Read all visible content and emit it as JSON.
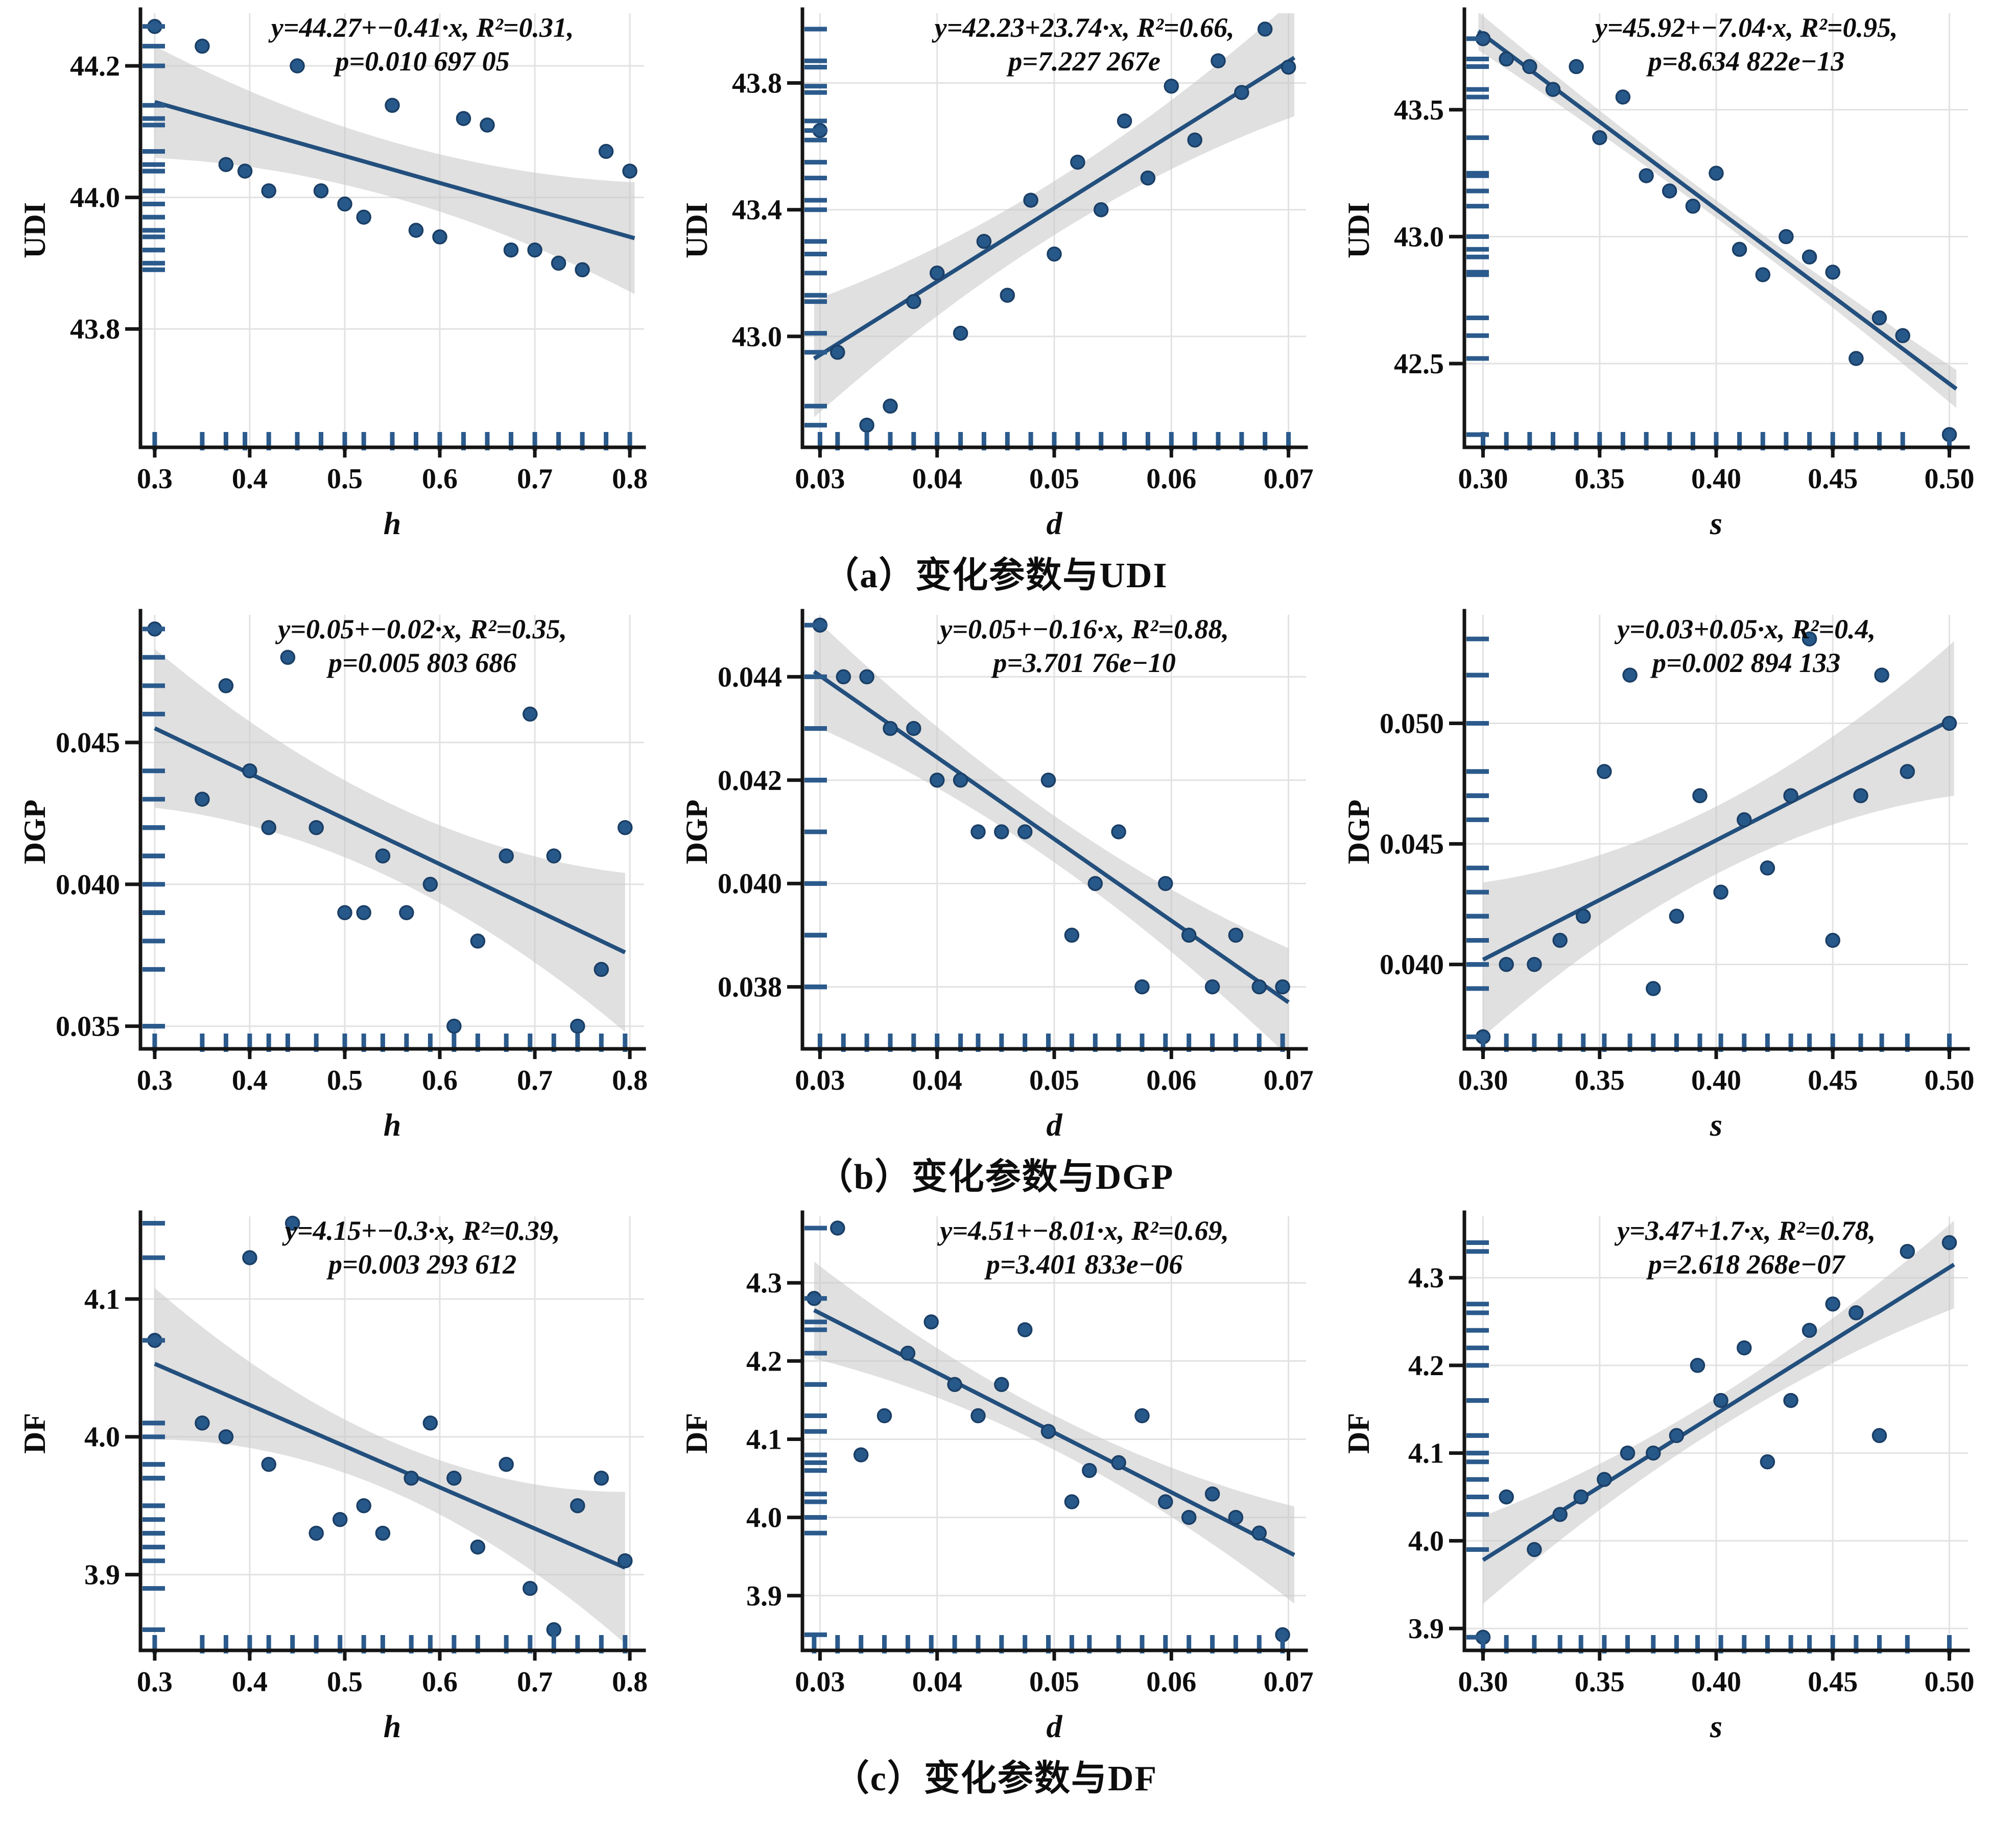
{
  "colors": {
    "point_fill": "#27588a",
    "point_stroke": "#1b3f66",
    "line": "#234f7d",
    "band": "#e0e0e0",
    "grid": "#c7c7c7",
    "axis": "#151515",
    "rug": "#2b5a8c",
    "text": "#0d0d0d"
  },
  "captions": [
    {
      "label": "（a）变化参数与UDI"
    },
    {
      "label": "（b）变化参数与DGP"
    },
    {
      "label": "（c）变化参数与DF"
    }
  ],
  "chart_data": [
    {
      "type": "scatter",
      "title": "UDI vs h regression",
      "annotation_line1": "y=44.27+−0.41·x, R²=0.31,",
      "annotation_line2": "p=0.010 697 05",
      "xlabel": "h",
      "ylabel": "UDI",
      "xlim": [
        0.285,
        0.815
      ],
      "ylim": [
        43.62,
        44.28
      ],
      "xtick_values": [
        0.3,
        0.4,
        0.5,
        0.6,
        0.7,
        0.8
      ],
      "xtick_labels": [
        "0.3",
        "0.4",
        "0.5",
        "0.6",
        "0.7",
        "0.8"
      ],
      "ytick_values": [
        44.2,
        44.0,
        43.8
      ],
      "ytick_labels": [
        "44.2",
        "44.0",
        "43.8"
      ],
      "regression": {
        "x1": 0.3,
        "y1": 44.145,
        "x2": 0.805,
        "y2": 43.938
      },
      "band": {
        "mid_halfwidth": 0.042,
        "end_halfwidth": 0.085
      },
      "points": [
        [
          0.3,
          44.26
        ],
        [
          0.35,
          44.23
        ],
        [
          0.375,
          44.05
        ],
        [
          0.395,
          44.04
        ],
        [
          0.42,
          44.01
        ],
        [
          0.45,
          44.2
        ],
        [
          0.475,
          44.01
        ],
        [
          0.5,
          43.99
        ],
        [
          0.52,
          43.97
        ],
        [
          0.55,
          44.14
        ],
        [
          0.575,
          43.95
        ],
        [
          0.6,
          43.94
        ],
        [
          0.625,
          44.12
        ],
        [
          0.65,
          44.11
        ],
        [
          0.675,
          43.92
        ],
        [
          0.7,
          43.92
        ],
        [
          0.725,
          43.9
        ],
        [
          0.75,
          43.89
        ],
        [
          0.775,
          44.07
        ],
        [
          0.8,
          44.04
        ]
      ]
    },
    {
      "type": "scatter",
      "title": "UDI vs d regression",
      "annotation_line1": "y=42.23+23.74·x, R²=0.66,",
      "annotation_line2": "p=7.227 267e",
      "xlabel": "d",
      "ylabel": "UDI",
      "xlim": [
        0.0285,
        0.0715
      ],
      "ylim": [
        42.65,
        44.02
      ],
      "xtick_values": [
        0.03,
        0.04,
        0.05,
        0.06,
        0.07
      ],
      "xtick_labels": [
        "0.03",
        "0.04",
        "0.05",
        "0.06",
        "0.07"
      ],
      "ytick_values": [
        43.8,
        43.4,
        43.0
      ],
      "ytick_labels": [
        "43.8",
        "43.4",
        "43.0"
      ],
      "regression": {
        "x1": 0.0295,
        "y1": 42.93,
        "x2": 0.0705,
        "y2": 43.88
      },
      "band": {
        "mid_halfwidth": 0.085,
        "end_halfwidth": 0.185
      },
      "points": [
        [
          0.03,
          43.65
        ],
        [
          0.0315,
          42.95
        ],
        [
          0.034,
          42.72
        ],
        [
          0.036,
          42.78
        ],
        [
          0.038,
          43.11
        ],
        [
          0.04,
          43.2
        ],
        [
          0.042,
          43.01
        ],
        [
          0.044,
          43.3
        ],
        [
          0.046,
          43.13
        ],
        [
          0.048,
          43.43
        ],
        [
          0.05,
          43.26
        ],
        [
          0.052,
          43.55
        ],
        [
          0.054,
          43.4
        ],
        [
          0.056,
          43.68
        ],
        [
          0.058,
          43.5
        ],
        [
          0.06,
          43.79
        ],
        [
          0.062,
          43.62
        ],
        [
          0.064,
          43.87
        ],
        [
          0.066,
          43.77
        ],
        [
          0.068,
          43.97
        ],
        [
          0.07,
          43.85
        ]
      ]
    },
    {
      "type": "scatter",
      "title": "UDI vs s regression",
      "annotation_line1": "y=45.92+−7.04·x, R²=0.95,",
      "annotation_line2": "p=8.634 822e−13",
      "xlabel": "s",
      "ylabel": "UDI",
      "xlim": [
        0.292,
        0.508
      ],
      "ylim": [
        42.17,
        43.88
      ],
      "xtick_values": [
        0.3,
        0.35,
        0.4,
        0.45,
        0.5
      ],
      "xtick_labels": [
        "0.30",
        "0.35",
        "0.40",
        "0.45",
        "0.50"
      ],
      "ytick_values": [
        43.5,
        43.0,
        42.5
      ],
      "ytick_labels": [
        "43.5",
        "43.0",
        "42.5"
      ],
      "regression": {
        "x1": 0.298,
        "y1": 43.81,
        "x2": 0.503,
        "y2": 42.4
      },
      "band": {
        "mid_halfwidth": 0.035,
        "end_halfwidth": 0.075
      },
      "points": [
        [
          0.3,
          43.78
        ],
        [
          0.31,
          43.7
        ],
        [
          0.32,
          43.67
        ],
        [
          0.33,
          43.58
        ],
        [
          0.34,
          43.67
        ],
        [
          0.35,
          43.39
        ],
        [
          0.36,
          43.55
        ],
        [
          0.37,
          43.24
        ],
        [
          0.38,
          43.18
        ],
        [
          0.39,
          43.12
        ],
        [
          0.4,
          43.25
        ],
        [
          0.41,
          42.95
        ],
        [
          0.42,
          42.85
        ],
        [
          0.43,
          43.0
        ],
        [
          0.44,
          42.92
        ],
        [
          0.45,
          42.86
        ],
        [
          0.46,
          42.52
        ],
        [
          0.47,
          42.68
        ],
        [
          0.48,
          42.61
        ],
        [
          0.5,
          42.22
        ]
      ]
    },
    {
      "type": "scatter",
      "title": "DGP vs h regression",
      "annotation_line1": "y=0.05+−0.02·x, R²=0.35,",
      "annotation_line2": "p=0.005 803 686",
      "xlabel": "h",
      "ylabel": "DGP",
      "xlim": [
        0.285,
        0.815
      ],
      "ylim": [
        0.0342,
        0.0495
      ],
      "xtick_values": [
        0.3,
        0.4,
        0.5,
        0.6,
        0.7,
        0.8
      ],
      "xtick_labels": [
        "0.3",
        "0.4",
        "0.5",
        "0.6",
        "0.7",
        "0.8"
      ],
      "ytick_values": [
        0.045,
        0.04,
        0.035
      ],
      "ytick_labels": [
        "0.045",
        "0.040",
        "0.035"
      ],
      "regression": {
        "x1": 0.3,
        "y1": 0.0455,
        "x2": 0.795,
        "y2": 0.0376
      },
      "band": {
        "mid_halfwidth": 0.0013,
        "end_halfwidth": 0.0028
      },
      "points": [
        [
          0.3,
          0.049
        ],
        [
          0.35,
          0.043
        ],
        [
          0.375,
          0.047
        ],
        [
          0.4,
          0.044
        ],
        [
          0.42,
          0.042
        ],
        [
          0.44,
          0.048
        ],
        [
          0.47,
          0.042
        ],
        [
          0.5,
          0.039
        ],
        [
          0.52,
          0.039
        ],
        [
          0.54,
          0.041
        ],
        [
          0.565,
          0.039
        ],
        [
          0.59,
          0.04
        ],
        [
          0.615,
          0.035
        ],
        [
          0.64,
          0.038
        ],
        [
          0.67,
          0.041
        ],
        [
          0.695,
          0.046
        ],
        [
          0.72,
          0.041
        ],
        [
          0.745,
          0.035
        ],
        [
          0.77,
          0.037
        ],
        [
          0.795,
          0.042
        ]
      ]
    },
    {
      "type": "scatter",
      "title": "DGP vs d regression",
      "annotation_line1": "y=0.05+−0.16·x, R²=0.88,",
      "annotation_line2": "p=3.701 76e−10",
      "xlabel": "d",
      "ylabel": "DGP",
      "xlim": [
        0.0285,
        0.0715
      ],
      "ylim": [
        0.0368,
        0.0452
      ],
      "xtick_values": [
        0.03,
        0.04,
        0.05,
        0.06,
        0.07
      ],
      "xtick_labels": [
        "0.03",
        "0.04",
        "0.05",
        "0.06",
        "0.07"
      ],
      "ytick_values": [
        0.044,
        0.042,
        0.04,
        0.038
      ],
      "ytick_labels": [
        "0.044",
        "0.042",
        "0.040",
        "0.038"
      ],
      "regression": {
        "x1": 0.0295,
        "y1": 0.0441,
        "x2": 0.07,
        "y2": 0.0377
      },
      "band": {
        "mid_halfwidth": 0.00045,
        "end_halfwidth": 0.00105
      },
      "points": [
        [
          0.03,
          0.045
        ],
        [
          0.032,
          0.044
        ],
        [
          0.034,
          0.044
        ],
        [
          0.036,
          0.043
        ],
        [
          0.038,
          0.043
        ],
        [
          0.04,
          0.042
        ],
        [
          0.042,
          0.042
        ],
        [
          0.0435,
          0.041
        ],
        [
          0.0455,
          0.041
        ],
        [
          0.0475,
          0.041
        ],
        [
          0.0495,
          0.042
        ],
        [
          0.0515,
          0.039
        ],
        [
          0.0535,
          0.04
        ],
        [
          0.0555,
          0.041
        ],
        [
          0.0575,
          0.038
        ],
        [
          0.0595,
          0.04
        ],
        [
          0.0615,
          0.039
        ],
        [
          0.0635,
          0.038
        ],
        [
          0.0655,
          0.039
        ],
        [
          0.0675,
          0.038
        ],
        [
          0.0695,
          0.038
        ]
      ]
    },
    {
      "type": "scatter",
      "title": "DGP vs s regression",
      "annotation_line1": "y=0.03+0.05·x, R²=0.4,",
      "annotation_line2": "p=0.002 894 133",
      "xlabel": "s",
      "ylabel": "DGP",
      "xlim": [
        0.292,
        0.508
      ],
      "ylim": [
        0.0365,
        0.0545
      ],
      "xtick_values": [
        0.3,
        0.35,
        0.4,
        0.45,
        0.5
      ],
      "xtick_labels": [
        "0.30",
        "0.35",
        "0.40",
        "0.45",
        "0.50"
      ],
      "ytick_values": [
        0.05,
        0.045,
        0.04
      ],
      "ytick_labels": [
        "0.050",
        "0.045",
        "0.040"
      ],
      "regression": {
        "x1": 0.3,
        "y1": 0.0402,
        "x2": 0.502,
        "y2": 0.0502
      },
      "band": {
        "mid_halfwidth": 0.0014,
        "end_halfwidth": 0.0032
      },
      "points": [
        [
          0.3,
          0.037
        ],
        [
          0.31,
          0.04
        ],
        [
          0.322,
          0.04
        ],
        [
          0.333,
          0.041
        ],
        [
          0.343,
          0.042
        ],
        [
          0.352,
          0.048
        ],
        [
          0.363,
          0.052
        ],
        [
          0.373,
          0.039
        ],
        [
          0.383,
          0.042
        ],
        [
          0.393,
          0.047
        ],
        [
          0.402,
          0.043
        ],
        [
          0.412,
          0.046
        ],
        [
          0.422,
          0.044
        ],
        [
          0.432,
          0.047
        ],
        [
          0.44,
          0.0535
        ],
        [
          0.45,
          0.041
        ],
        [
          0.462,
          0.047
        ],
        [
          0.471,
          0.052
        ],
        [
          0.482,
          0.048
        ],
        [
          0.5,
          0.05
        ]
      ]
    },
    {
      "type": "scatter",
      "title": "DF vs h regression",
      "annotation_line1": "y=4.15+−0.3·x, R²=0.39,",
      "annotation_line2": "p=0.003 293 612",
      "xlabel": "h",
      "ylabel": "DF",
      "xlim": [
        0.285,
        0.815
      ],
      "ylim": [
        3.845,
        4.16
      ],
      "xtick_values": [
        0.3,
        0.4,
        0.5,
        0.6,
        0.7,
        0.8
      ],
      "xtick_labels": [
        "0.3",
        "0.4",
        "0.5",
        "0.6",
        "0.7",
        "0.8"
      ],
      "ytick_values": [
        4.1,
        4.0,
        3.9
      ],
      "ytick_labels": [
        "4.1",
        "4.0",
        "3.9"
      ],
      "regression": {
        "x1": 0.3,
        "y1": 4.053,
        "x2": 0.795,
        "y2": 3.905
      },
      "band": {
        "mid_halfwidth": 0.018,
        "end_halfwidth": 0.055
      },
      "points": [
        [
          0.3,
          4.07
        ],
        [
          0.35,
          4.01
        ],
        [
          0.375,
          4.0
        ],
        [
          0.4,
          4.13
        ],
        [
          0.42,
          3.98
        ],
        [
          0.445,
          4.155
        ],
        [
          0.47,
          3.93
        ],
        [
          0.495,
          3.94
        ],
        [
          0.52,
          3.95
        ],
        [
          0.54,
          3.93
        ],
        [
          0.57,
          3.97
        ],
        [
          0.59,
          4.01
        ],
        [
          0.615,
          3.97
        ],
        [
          0.64,
          3.92
        ],
        [
          0.67,
          3.98
        ],
        [
          0.695,
          3.89
        ],
        [
          0.72,
          3.86
        ],
        [
          0.745,
          3.95
        ],
        [
          0.77,
          3.97
        ],
        [
          0.795,
          3.91
        ]
      ]
    },
    {
      "type": "scatter",
      "title": "DF vs d regression",
      "annotation_line1": "y=4.51+−8.01·x, R²=0.69,",
      "annotation_line2": "p=3.401 833e−06",
      "xlabel": "d",
      "ylabel": "DF",
      "xlim": [
        0.0285,
        0.0715
      ],
      "ylim": [
        3.83,
        4.385
      ],
      "xtick_values": [
        0.03,
        0.04,
        0.05,
        0.06,
        0.07
      ],
      "xtick_labels": [
        "0.03",
        "0.04",
        "0.05",
        "0.06",
        "0.07"
      ],
      "ytick_values": [
        4.3,
        4.2,
        4.1,
        4.0,
        3.9
      ],
      "ytick_labels": [
        "4.3",
        "4.2",
        "4.1",
        "4.0",
        "3.9"
      ],
      "regression": {
        "x1": 0.0295,
        "y1": 4.265,
        "x2": 0.0705,
        "y2": 3.952
      },
      "band": {
        "mid_halfwidth": 0.022,
        "end_halfwidth": 0.062
      },
      "points": [
        [
          0.0295,
          4.28
        ],
        [
          0.0315,
          4.37
        ],
        [
          0.0335,
          4.08
        ],
        [
          0.0355,
          4.13
        ],
        [
          0.0375,
          4.21
        ],
        [
          0.0395,
          4.25
        ],
        [
          0.0415,
          4.17
        ],
        [
          0.0435,
          4.13
        ],
        [
          0.0455,
          4.17
        ],
        [
          0.0475,
          4.24
        ],
        [
          0.0495,
          4.11
        ],
        [
          0.0515,
          4.02
        ],
        [
          0.053,
          4.06
        ],
        [
          0.0555,
          4.07
        ],
        [
          0.0575,
          4.13
        ],
        [
          0.0595,
          4.02
        ],
        [
          0.0615,
          4.0
        ],
        [
          0.0635,
          4.03
        ],
        [
          0.0655,
          4.0
        ],
        [
          0.0675,
          3.98
        ],
        [
          0.0695,
          3.85
        ]
      ]
    },
    {
      "type": "scatter",
      "title": "DF vs s regression",
      "annotation_line1": "y=3.47+1.7·x, R²=0.78,",
      "annotation_line2": "p=2.618 268e−07",
      "xlabel": "s",
      "ylabel": "DF",
      "xlim": [
        0.292,
        0.508
      ],
      "ylim": [
        3.875,
        4.37
      ],
      "xtick_values": [
        0.3,
        0.35,
        0.4,
        0.45,
        0.5
      ],
      "xtick_labels": [
        "0.30",
        "0.35",
        "0.40",
        "0.45",
        "0.50"
      ],
      "ytick_values": [
        4.3,
        4.2,
        4.1,
        4.0,
        3.9
      ],
      "ytick_labels": [
        "4.3",
        "4.2",
        "4.1",
        "4.0",
        "3.9"
      ],
      "regression": {
        "x1": 0.3,
        "y1": 3.978,
        "x2": 0.502,
        "y2": 4.315
      },
      "band": {
        "mid_halfwidth": 0.018,
        "end_halfwidth": 0.05
      },
      "points": [
        [
          0.3,
          3.89
        ],
        [
          0.31,
          4.05
        ],
        [
          0.322,
          3.99
        ],
        [
          0.333,
          4.03
        ],
        [
          0.342,
          4.05
        ],
        [
          0.352,
          4.07
        ],
        [
          0.362,
          4.1
        ],
        [
          0.373,
          4.1
        ],
        [
          0.383,
          4.12
        ],
        [
          0.392,
          4.2
        ],
        [
          0.402,
          4.16
        ],
        [
          0.412,
          4.22
        ],
        [
          0.422,
          4.09
        ],
        [
          0.432,
          4.16
        ],
        [
          0.44,
          4.24
        ],
        [
          0.45,
          4.27
        ],
        [
          0.46,
          4.26
        ],
        [
          0.47,
          4.12
        ],
        [
          0.482,
          4.33
        ],
        [
          0.5,
          4.34
        ]
      ]
    }
  ]
}
